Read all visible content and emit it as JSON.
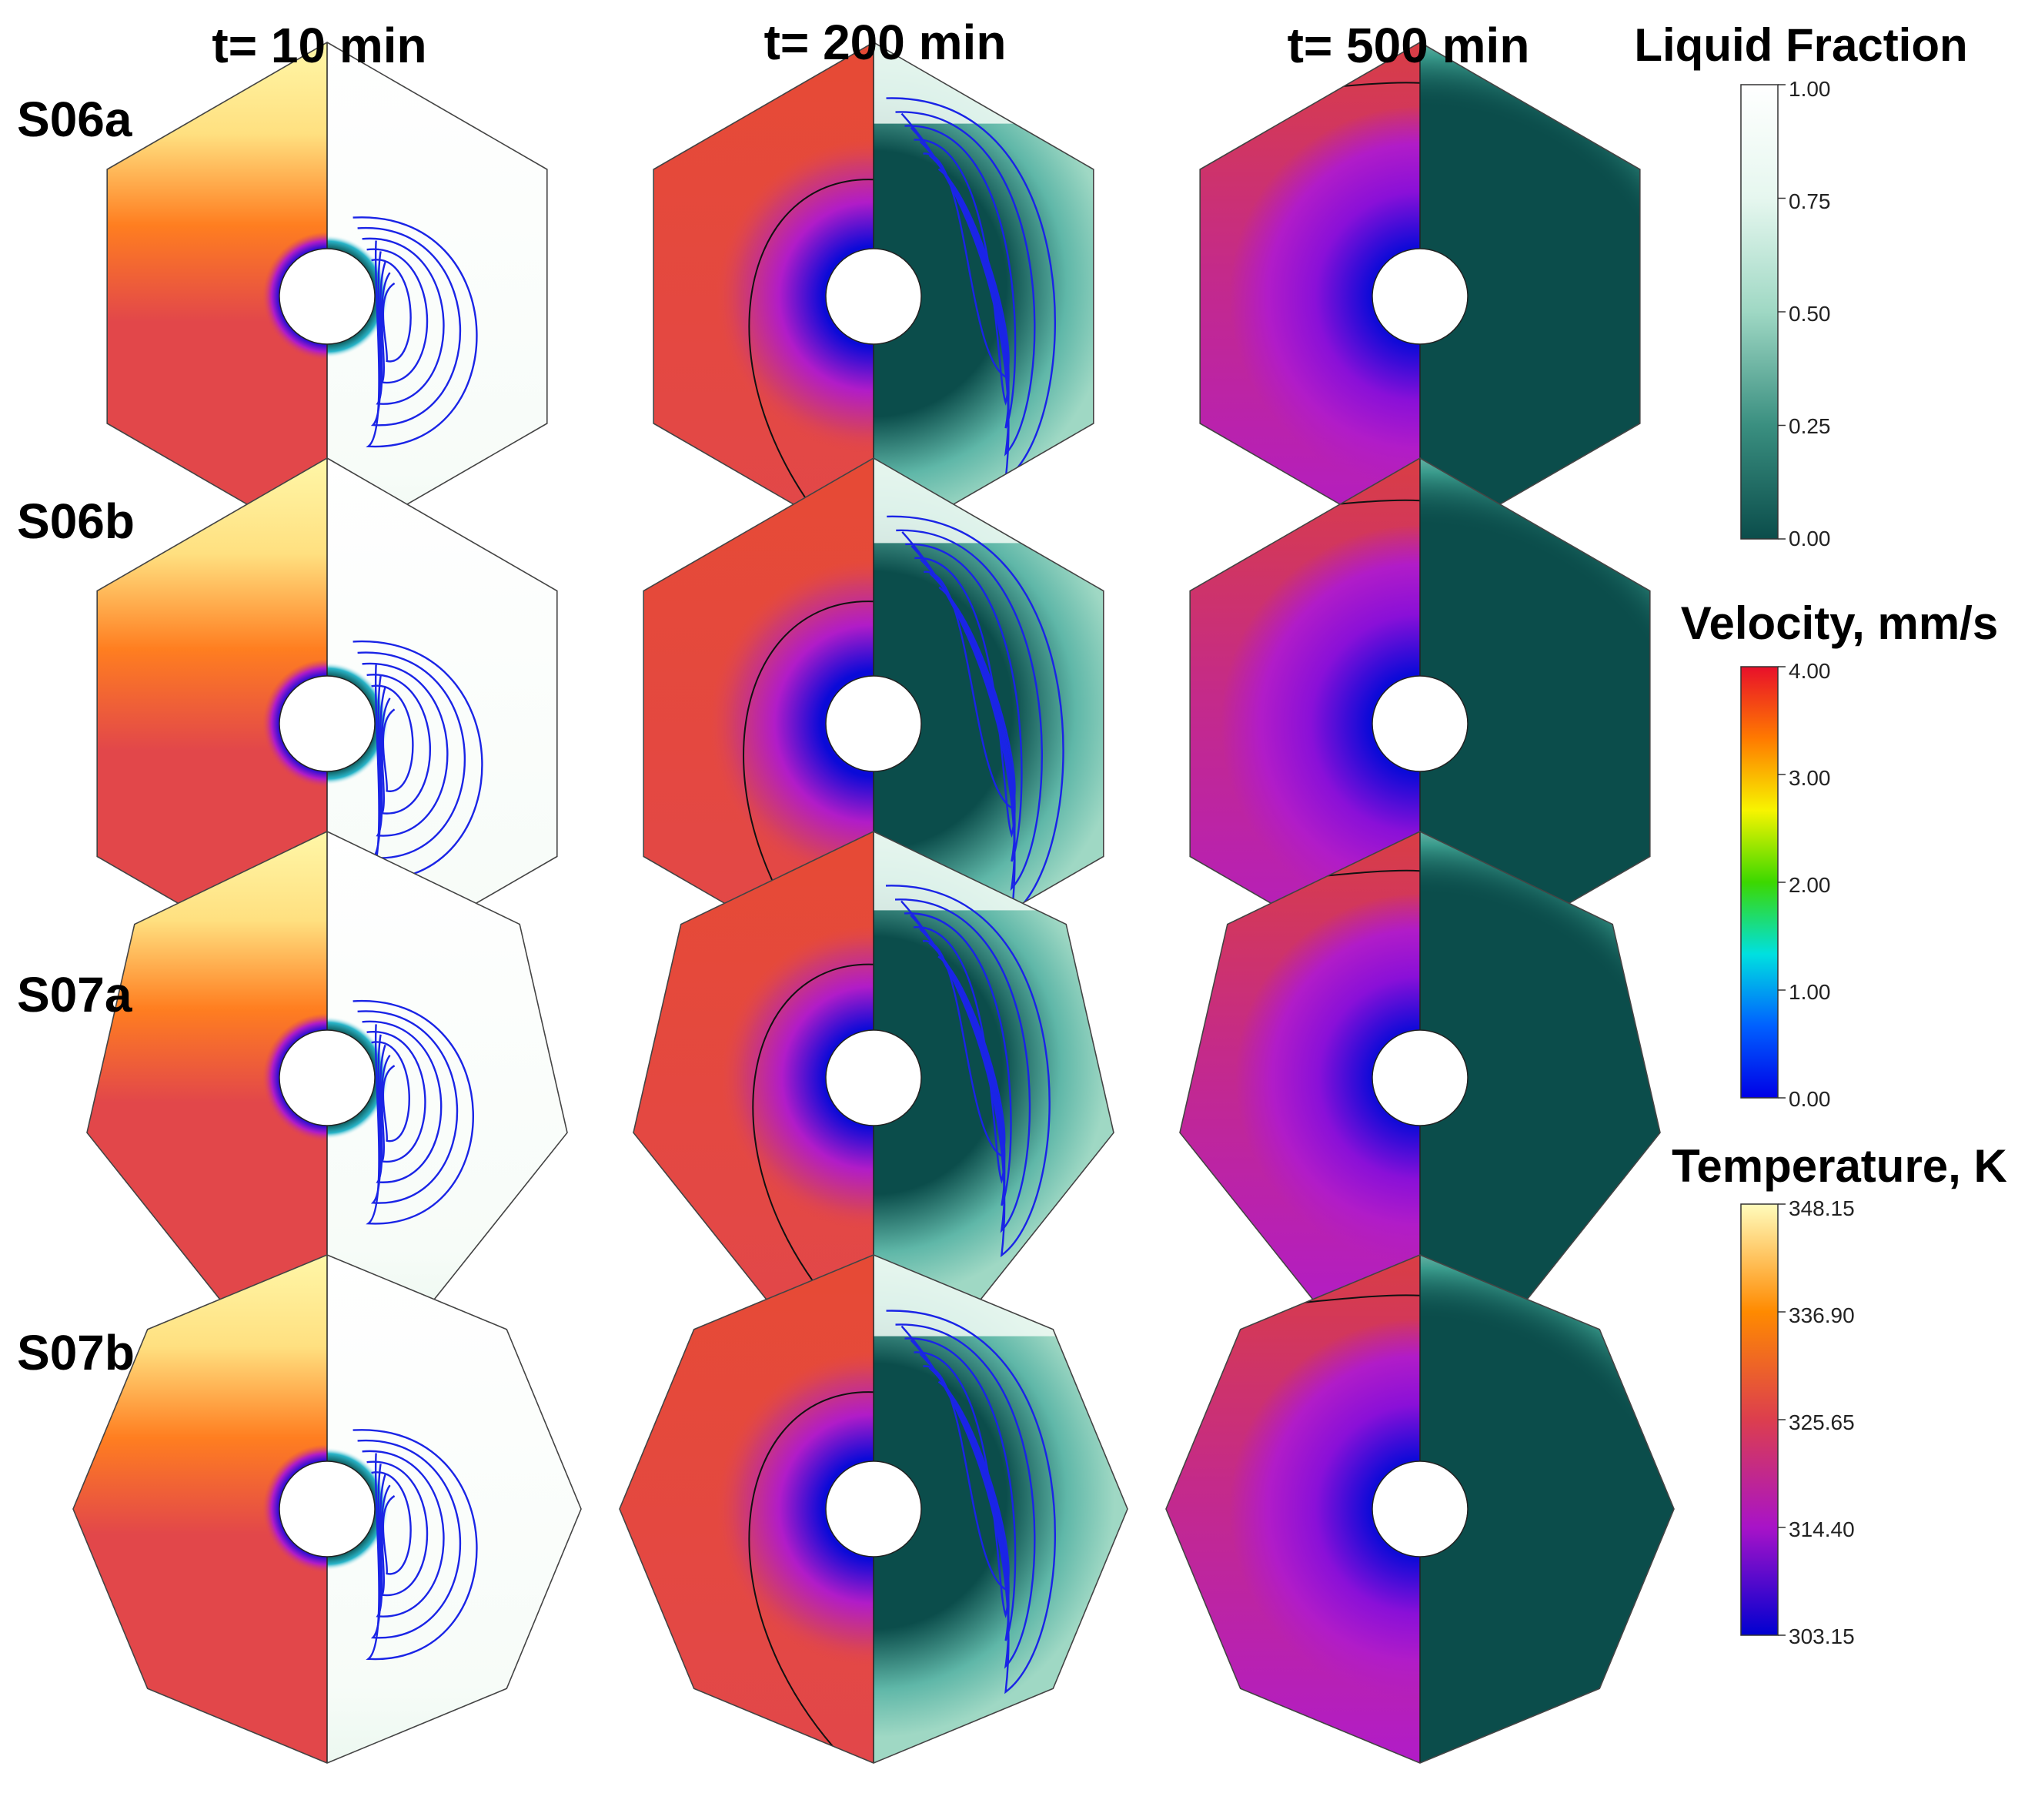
{
  "columns": [
    {
      "title": "t= 10 min"
    },
    {
      "title": "t= 200 min"
    },
    {
      "title": "t= 500 min"
    }
  ],
  "rows": [
    {
      "label": "S06a",
      "sides": 6
    },
    {
      "label": "S06b",
      "sides": 6
    },
    {
      "label": "S07a",
      "sides": 7
    },
    {
      "label": "S07b",
      "sides": 8
    }
  ],
  "colorbars": [
    {
      "key": "liquid",
      "title": "Liquid Fraction",
      "ticks": [
        "1.00",
        "0.75",
        "0.50",
        "0.25",
        "0.00"
      ],
      "colors": [
        "#ffffff",
        "#e6f7ef",
        "#9fd8c4",
        "#3a8f80",
        "#0b4d4b"
      ]
    },
    {
      "key": "velocity",
      "title": "Velocity, mm/s",
      "ticks": [
        "4.00",
        "3.00",
        "2.00",
        "1.00",
        "0.00"
      ],
      "colors": [
        "#e8102a",
        "#ff7a00",
        "#f7f400",
        "#3cd800",
        "#00e0e0",
        "#0060ff",
        "#0000e6"
      ]
    },
    {
      "key": "temperature",
      "title": "Temperature, K",
      "ticks": [
        "348.15",
        "336.90",
        "325.65",
        "314.40",
        "303.15"
      ],
      "colors": [
        "#fffcbc",
        "#ff8a00",
        "#dc3e4e",
        "#a813c8",
        "#0000d0"
      ]
    }
  ],
  "fields": {
    "temp_hot_top": "#fff7a8",
    "temp_mid": "#ff7e20",
    "temp_body": "#e2474a",
    "temp_t200_top": "#e64a35",
    "temp_t500_top": "#d93e44",
    "temp_cold": "#0a0ad8",
    "temp_magenta": "#b11cc8",
    "liquid_solid": "#0b4d4b",
    "liquid_light": "#ecf8f0",
    "liquid_mid": "#9fd8c4",
    "streamline": "#1a24e6"
  }
}
